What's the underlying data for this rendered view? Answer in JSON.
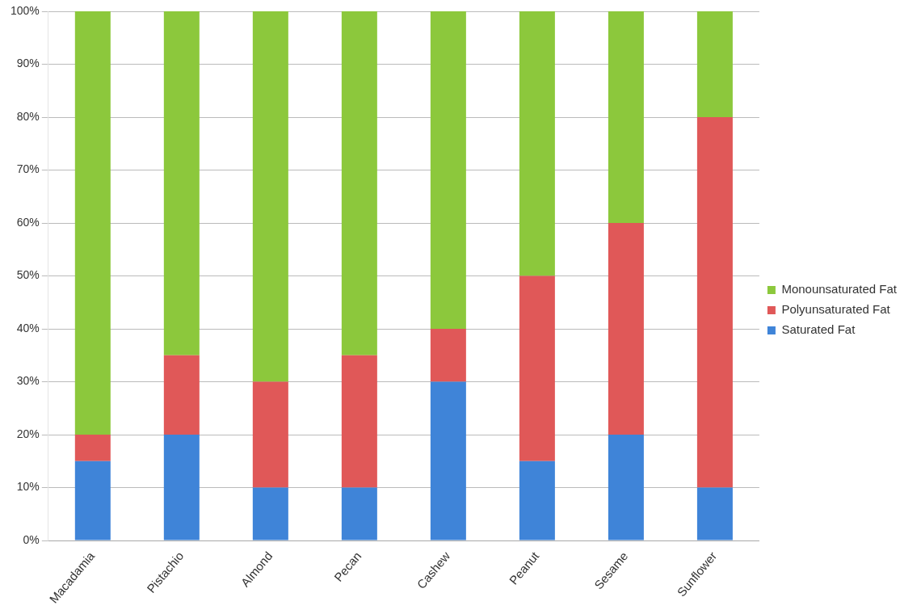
{
  "chart_data": {
    "type": "bar",
    "stacked": true,
    "categories": [
      "Macadamia",
      "Pistachio",
      "Almond",
      "Pecan",
      "Cashew",
      "Peanut",
      "Sesame",
      "Sunflower"
    ],
    "series": [
      {
        "name": "Saturated Fat",
        "color": "#3f84d8",
        "values": [
          15,
          20,
          10,
          10,
          30,
          15,
          20,
          10
        ]
      },
      {
        "name": "Polyunsaturated Fat",
        "color": "#e05858",
        "values": [
          5,
          15,
          20,
          25,
          10,
          35,
          40,
          70
        ]
      },
      {
        "name": "Monounsaturated Fat",
        "color": "#8cc83c",
        "values": [
          80,
          65,
          70,
          65,
          60,
          50,
          40,
          20
        ]
      }
    ],
    "ylim": [
      0,
      100
    ],
    "yticks": [
      {
        "value": 0,
        "label": "0%"
      },
      {
        "value": 10,
        "label": "10%"
      },
      {
        "value": 20,
        "label": "20%"
      },
      {
        "value": 30,
        "label": "30%"
      },
      {
        "value": 40,
        "label": "40%"
      },
      {
        "value": 50,
        "label": "50%"
      },
      {
        "value": 60,
        "label": "60%"
      },
      {
        "value": 70,
        "label": "70%"
      },
      {
        "value": 80,
        "label": "80%"
      },
      {
        "value": 90,
        "label": "90%"
      },
      {
        "value": 100,
        "label": "100%"
      }
    ],
    "grid": "y",
    "legend": "right"
  }
}
